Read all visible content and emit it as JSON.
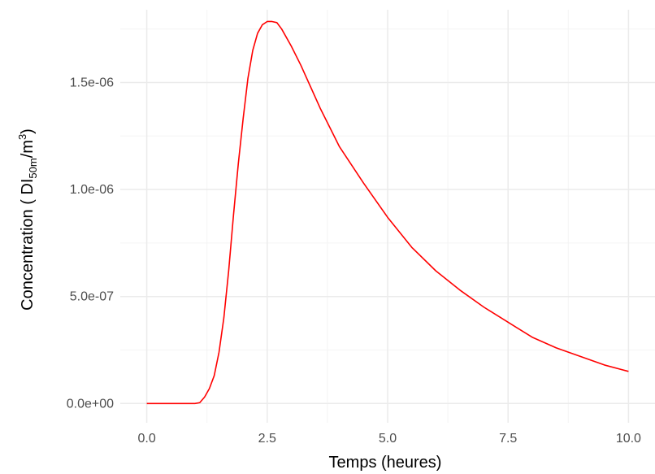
{
  "chart_data": {
    "type": "line",
    "xlabel": "Temps (heures)",
    "ylabel": {
      "prefix": "Concentration ( DI",
      "subscript": "50m",
      "middle": "/m",
      "superscript": "3",
      "suffix": ")"
    },
    "xlim": [
      -0.55,
      10.55
    ],
    "ylim": [
      -9e-08,
      1.84e-06
    ],
    "x_ticks": [
      0,
      2.5,
      5,
      7.5,
      10
    ],
    "x_tick_labels": [
      "0.0",
      "2.5",
      "5.0",
      "7.5",
      "10.0"
    ],
    "y_ticks": [
      0,
      5e-07,
      1e-06,
      1.5e-06
    ],
    "y_tick_labels": [
      "0.0e+00",
      "5.0e-07",
      "1.0e-06",
      "1.5e-06"
    ],
    "x_minor_ticks": [
      1.25,
      3.75,
      6.25,
      8.75
    ],
    "y_minor_ticks": [
      2.5e-07,
      7.5e-07,
      1.25e-06,
      1.75e-06
    ],
    "grid": true,
    "legend": "none",
    "series": [
      {
        "color": "#ff0000",
        "x": [
          0,
          0.2,
          0.4,
          0.6,
          0.8,
          1.0,
          1.1,
          1.2,
          1.3,
          1.4,
          1.5,
          1.6,
          1.7,
          1.8,
          1.9,
          2.0,
          2.1,
          2.2,
          2.3,
          2.4,
          2.5,
          2.6,
          2.7,
          2.8,
          3.0,
          3.2,
          3.4,
          3.6,
          3.8,
          4.0,
          4.5,
          5.0,
          5.5,
          6.0,
          6.5,
          7.0,
          7.5,
          8.0,
          8.5,
          9.0,
          9.5,
          10.0
        ],
        "y": [
          0,
          0,
          0,
          0,
          0,
          0,
          4e-09,
          3e-08,
          7e-08,
          1.3e-07,
          2.4e-07,
          4e-07,
          6.2e-07,
          8.8e-07,
          1.12e-06,
          1.33e-06,
          1.52e-06,
          1.65e-06,
          1.73e-06,
          1.77e-06,
          1.785e-06,
          1.785e-06,
          1.78e-06,
          1.75e-06,
          1.67e-06,
          1.58e-06,
          1.48e-06,
          1.38e-06,
          1.29e-06,
          1.2e-06,
          1.03e-06,
          8.7e-07,
          7.3e-07,
          6.2e-07,
          5.3e-07,
          4.5e-07,
          3.8e-07,
          3.1e-07,
          2.6e-07,
          2.2e-07,
          1.8e-07,
          1.5e-07
        ]
      }
    ]
  },
  "colors": {
    "grid_major": "#ebebeb",
    "grid_minor": "#f4f4f4",
    "line": "#ff0000"
  }
}
